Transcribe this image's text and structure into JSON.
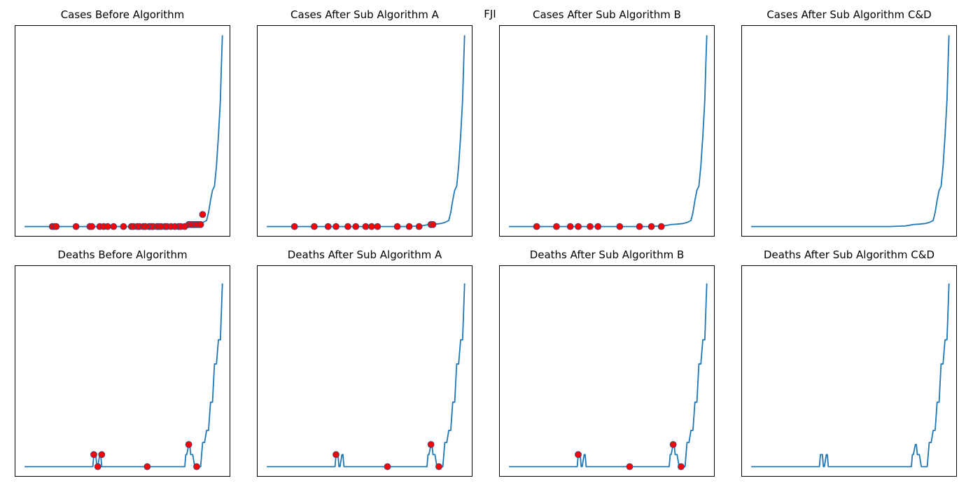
{
  "figure": {
    "title": "FJI"
  },
  "colors": {
    "line": "#1f77b4",
    "marker_fill": "#ff0000",
    "marker_edge": "#1f4e8c",
    "frame": "#000000"
  },
  "chart_data": [
    {
      "type": "line",
      "title": "Cases Before Algorithm",
      "xlabel": "",
      "ylabel": "",
      "axis_ticks": "hidden",
      "xlim": [
        -5,
        104
      ],
      "ylim": [
        -5,
        100
      ],
      "x": [
        0,
        10,
        20,
        30,
        40,
        50,
        60,
        70,
        78,
        82,
        85,
        88,
        90,
        92,
        93,
        94,
        95,
        96,
        97,
        98,
        99,
        99.5,
        100
      ],
      "y": [
        0,
        0,
        0,
        0,
        0,
        0,
        0,
        0,
        0.3,
        1,
        1.2,
        1.5,
        2,
        3,
        7,
        13,
        18,
        20,
        30,
        45,
        63,
        80,
        95
      ],
      "outliers": {
        "x": [
          14,
          15,
          16,
          26,
          33,
          34,
          38,
          40,
          42,
          45,
          50,
          54,
          55,
          57,
          58,
          60,
          61,
          63,
          64,
          65,
          67,
          68,
          69,
          71,
          72,
          74,
          76,
          78,
          79,
          81,
          83,
          84,
          85,
          86,
          87,
          88,
          89,
          90
        ],
        "y": [
          0,
          0,
          0,
          0,
          0,
          0,
          0,
          0,
          0,
          0,
          0,
          0,
          0,
          0,
          0,
          0,
          0,
          0,
          0,
          0,
          0,
          0,
          0,
          0,
          0,
          0,
          0,
          0,
          0,
          0,
          1,
          1,
          1,
          1,
          1,
          1,
          1,
          6
        ]
      }
    },
    {
      "type": "line",
      "title": "Cases After Sub Algorithm A",
      "xlabel": "",
      "ylabel": "",
      "axis_ticks": "hidden",
      "xlim": [
        -5,
        104
      ],
      "ylim": [
        -5,
        100
      ],
      "x": [
        0,
        10,
        20,
        30,
        40,
        50,
        60,
        70,
        78,
        82,
        85,
        88,
        90,
        92,
        93,
        94,
        95,
        96,
        97,
        98,
        99,
        99.5,
        100
      ],
      "y": [
        0,
        0,
        0,
        0,
        0,
        0,
        0,
        0,
        0.3,
        1,
        1.2,
        1.5,
        2,
        3,
        7,
        13,
        18,
        20,
        30,
        45,
        63,
        80,
        95
      ],
      "outliers": {
        "x": [
          14,
          24,
          31,
          35,
          41,
          45,
          50,
          53,
          56,
          66,
          72,
          77,
          83,
          84
        ],
        "y": [
          0,
          0,
          0,
          0,
          0,
          0,
          0,
          0,
          0,
          0,
          0,
          0,
          1,
          1
        ]
      }
    },
    {
      "type": "line",
      "title": "Cases After Sub Algorithm B",
      "xlabel": "",
      "ylabel": "",
      "axis_ticks": "hidden",
      "xlim": [
        -5,
        104
      ],
      "ylim": [
        -5,
        100
      ],
      "x": [
        0,
        10,
        20,
        30,
        40,
        50,
        60,
        70,
        78,
        82,
        85,
        88,
        90,
        92,
        93,
        94,
        95,
        96,
        97,
        98,
        99,
        99.5,
        100
      ],
      "y": [
        0,
        0,
        0,
        0,
        0,
        0,
        0,
        0,
        0.3,
        1,
        1.2,
        1.5,
        2,
        3,
        7,
        13,
        18,
        20,
        30,
        45,
        63,
        80,
        95
      ],
      "outliers": {
        "x": [
          14,
          24,
          31,
          35,
          41,
          45,
          56,
          66,
          72,
          77
        ],
        "y": [
          0,
          0,
          0,
          0,
          0,
          0,
          0,
          0,
          0,
          0
        ]
      }
    },
    {
      "type": "line",
      "title": "Cases After Sub Algorithm C&D",
      "xlabel": "",
      "ylabel": "",
      "axis_ticks": "hidden",
      "xlim": [
        -5,
        104
      ],
      "ylim": [
        -5,
        100
      ],
      "x": [
        0,
        10,
        20,
        30,
        40,
        50,
        60,
        70,
        78,
        82,
        85,
        88,
        90,
        92,
        93,
        94,
        95,
        96,
        97,
        98,
        99,
        99.5,
        100
      ],
      "y": [
        0,
        0,
        0,
        0,
        0,
        0,
        0,
        0,
        0.3,
        1,
        1.2,
        1.5,
        2,
        3,
        7,
        13,
        18,
        20,
        30,
        45,
        63,
        80,
        95
      ],
      "outliers": {
        "x": [],
        "y": []
      }
    },
    {
      "type": "line",
      "title": "Deaths Before Algorithm",
      "xlabel": "",
      "ylabel": "",
      "axis_ticks": "hidden",
      "xlim": [
        -5,
        104
      ],
      "ylim": [
        -5,
        100
      ],
      "x": [
        0,
        34.5,
        35,
        36,
        36.5,
        37,
        38,
        38.5,
        39,
        40,
        40.5,
        41,
        81,
        81.5,
        82,
        83,
        83.5,
        84,
        85,
        86,
        87,
        87.5,
        88,
        89,
        90,
        91,
        92,
        93,
        94,
        95,
        96,
        97,
        98,
        99,
        100
      ],
      "y": [
        0,
        0,
        6,
        6,
        0,
        0,
        6,
        6,
        0,
        0,
        0,
        0,
        0,
        6,
        6,
        11,
        11,
        6,
        6,
        0,
        0,
        0,
        0,
        0,
        12,
        12,
        18,
        18,
        32,
        32,
        51,
        51,
        63,
        63,
        91
      ],
      "outliers": {
        "x": [
          35,
          37,
          39,
          62,
          83,
          87
        ],
        "y": [
          6,
          0,
          6,
          0,
          11,
          0
        ]
      }
    },
    {
      "type": "line",
      "title": "Deaths After Sub Algorithm A",
      "xlabel": "",
      "ylabel": "",
      "axis_ticks": "hidden",
      "xlim": [
        -5,
        104
      ],
      "ylim": [
        -5,
        100
      ],
      "x": [
        0,
        34.5,
        35,
        36,
        36.5,
        37,
        38,
        38.5,
        39,
        40,
        40.5,
        41,
        81,
        81.5,
        82,
        83,
        83.5,
        84,
        85,
        86,
        87,
        87.5,
        88,
        89,
        90,
        91,
        92,
        93,
        94,
        95,
        96,
        97,
        98,
        99,
        100
      ],
      "y": [
        0,
        0,
        6,
        6,
        0,
        0,
        6,
        6,
        0,
        0,
        0,
        0,
        0,
        6,
        6,
        11,
        11,
        6,
        6,
        0,
        0,
        0,
        0,
        0,
        12,
        12,
        18,
        18,
        32,
        32,
        51,
        51,
        63,
        63,
        91
      ],
      "outliers": {
        "x": [
          35,
          61,
          83,
          87
        ],
        "y": [
          6,
          0,
          11,
          0
        ]
      }
    },
    {
      "type": "line",
      "title": "Deaths After Sub Algorithm B",
      "xlabel": "",
      "ylabel": "",
      "axis_ticks": "hidden",
      "xlim": [
        -5,
        104
      ],
      "ylim": [
        -5,
        100
      ],
      "x": [
        0,
        34.5,
        35,
        36,
        36.5,
        37,
        38,
        38.5,
        39,
        40,
        40.5,
        41,
        81,
        81.5,
        82,
        83,
        83.5,
        84,
        85,
        86,
        87,
        87.5,
        88,
        89,
        90,
        91,
        92,
        93,
        94,
        95,
        96,
        97,
        98,
        99,
        100
      ],
      "y": [
        0,
        0,
        6,
        6,
        0,
        0,
        6,
        6,
        0,
        0,
        0,
        0,
        0,
        6,
        6,
        11,
        11,
        6,
        6,
        0,
        0,
        0,
        0,
        0,
        12,
        12,
        18,
        18,
        32,
        32,
        51,
        51,
        63,
        63,
        91
      ],
      "outliers": {
        "x": [
          35,
          61,
          83,
          87
        ],
        "y": [
          6,
          0,
          11,
          0
        ]
      }
    },
    {
      "type": "line",
      "title": "Deaths After Sub Algorithm C&D",
      "xlabel": "",
      "ylabel": "",
      "axis_ticks": "hidden",
      "xlim": [
        -5,
        104
      ],
      "ylim": [
        -5,
        100
      ],
      "x": [
        0,
        34.5,
        35,
        36,
        36.5,
        37,
        38,
        38.5,
        39,
        40,
        40.5,
        41,
        81,
        81.5,
        82,
        83,
        83.5,
        84,
        85,
        86,
        87,
        87.5,
        88,
        89,
        90,
        91,
        92,
        93,
        94,
        95,
        96,
        97,
        98,
        99,
        100
      ],
      "y": [
        0,
        0,
        6,
        6,
        0,
        0,
        6,
        6,
        0,
        0,
        0,
        0,
        0,
        6,
        6,
        11,
        11,
        6,
        6,
        0,
        0,
        0,
        0,
        0,
        12,
        12,
        18,
        18,
        32,
        32,
        51,
        51,
        63,
        63,
        91
      ],
      "outliers": {
        "x": [],
        "y": []
      }
    }
  ]
}
